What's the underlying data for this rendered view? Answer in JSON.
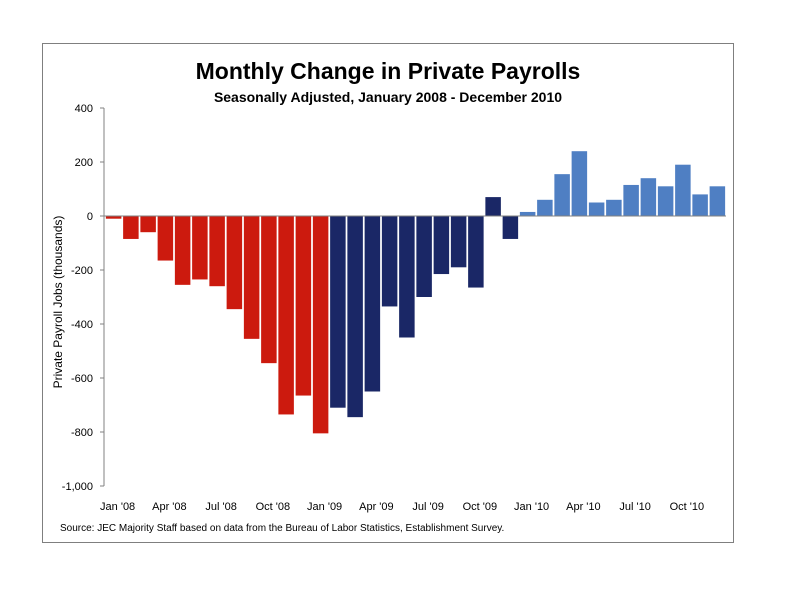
{
  "chart_data": {
    "type": "bar",
    "title": "Monthly Change in Private Payrolls",
    "subtitle": "Seasonally Adjusted, January 2008 - December 2010",
    "ylabel": "Private Payroll Jobs (thousands)",
    "xlabel": "",
    "ylim": [
      -1000,
      400
    ],
    "y_ticks": [
      {
        "value": 400,
        "label": "400"
      },
      {
        "value": 200,
        "label": "200"
      },
      {
        "value": 0,
        "label": "0"
      },
      {
        "value": -200,
        "label": "-200"
      },
      {
        "value": -400,
        "label": "-400"
      },
      {
        "value": -600,
        "label": "-600"
      },
      {
        "value": -800,
        "label": "-800"
      },
      {
        "value": -1000,
        "label": "-1,000"
      }
    ],
    "x_tick_labels": [
      {
        "index": 0,
        "label": "Jan '08"
      },
      {
        "index": 3,
        "label": "Apr '08"
      },
      {
        "index": 6,
        "label": "Jul '08"
      },
      {
        "index": 9,
        "label": "Oct '08"
      },
      {
        "index": 12,
        "label": "Jan '09"
      },
      {
        "index": 15,
        "label": "Apr '09"
      },
      {
        "index": 18,
        "label": "Jul '09"
      },
      {
        "index": 21,
        "label": "Oct '09"
      },
      {
        "index": 24,
        "label": "Jan '10"
      },
      {
        "index": 27,
        "label": "Apr '10"
      },
      {
        "index": 30,
        "label": "Jul '10"
      },
      {
        "index": 33,
        "label": "Oct '10"
      }
    ],
    "grid": false,
    "legend": "none",
    "series": [
      {
        "color": "#cc1a0e",
        "start_index": 0,
        "values": [
          -10,
          -85,
          -60,
          -165,
          -255,
          -235,
          -260,
          -345,
          -455,
          -545,
          -735,
          -665,
          -805
        ]
      },
      {
        "color": "#1a2766",
        "start_index": 13,
        "values": [
          -710,
          -745,
          -650,
          -335,
          -450,
          -300,
          -215,
          -190,
          -265,
          70,
          -85
        ]
      },
      {
        "color": "#4f7fc3",
        "start_index": 24,
        "values": [
          15,
          60,
          155,
          240,
          50,
          60,
          115,
          140,
          110,
          190,
          80,
          110
        ]
      }
    ]
  },
  "source_note": "Source: JEC Majority Staff based on data from the Bureau of Labor Statistics, Establishment Survey."
}
